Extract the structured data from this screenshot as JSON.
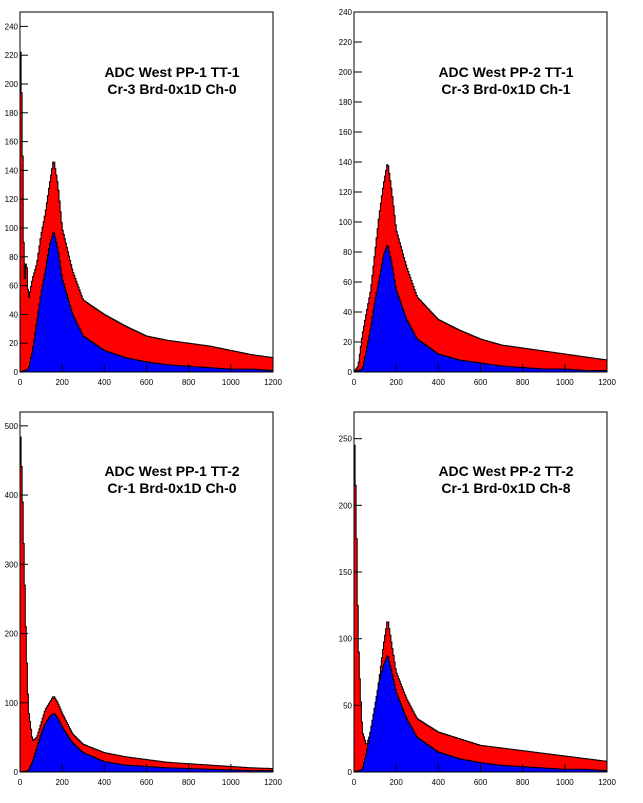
{
  "chart_data": [
    {
      "type": "histogram",
      "title": [
        "ADC West PP-1 TT-1",
        "Cr-3 Brd-0x1D Ch-0"
      ],
      "xlim": [
        0,
        1200
      ],
      "ylim": [
        0,
        250
      ],
      "xticks": [
        0,
        200,
        400,
        600,
        800,
        1000,
        1200
      ],
      "yticks": [
        0,
        20,
        40,
        60,
        80,
        100,
        120,
        140,
        160,
        180,
        200,
        220,
        240
      ],
      "series": [
        {
          "color": "#ff0000",
          "x": [
            0,
            10,
            20,
            30,
            40,
            60,
            80,
            100,
            120,
            140,
            160,
            180,
            200,
            250,
            300,
            400,
            500,
            600,
            700,
            800,
            900,
            1000,
            1100,
            1200
          ],
          "y": [
            236,
            180,
            60,
            80,
            50,
            65,
            75,
            95,
            110,
            130,
            148,
            130,
            100,
            70,
            50,
            40,
            32,
            25,
            22,
            20,
            18,
            15,
            12,
            10
          ]
        },
        {
          "color": "#0000ff",
          "x": [
            0,
            40,
            60,
            80,
            100,
            120,
            140,
            160,
            180,
            200,
            250,
            300,
            400,
            500,
            600,
            700,
            800,
            900,
            1000,
            1100,
            1200
          ],
          "y": [
            0,
            2,
            15,
            35,
            55,
            70,
            88,
            98,
            85,
            65,
            40,
            25,
            15,
            10,
            7,
            5,
            4,
            3,
            2,
            2,
            1
          ]
        }
      ]
    },
    {
      "type": "histogram",
      "title": [
        "ADC West PP-2 TT-1",
        "Cr-3 Brd-0x1D Ch-1"
      ],
      "xlim": [
        0,
        1200
      ],
      "ylim": [
        0,
        240
      ],
      "xticks": [
        0,
        200,
        400,
        600,
        800,
        1000,
        1200
      ],
      "yticks": [
        0,
        20,
        40,
        60,
        80,
        100,
        120,
        140,
        160,
        180,
        200,
        220,
        240
      ],
      "series": [
        {
          "color": "#ff0000",
          "x": [
            0,
            20,
            40,
            60,
            80,
            100,
            120,
            140,
            160,
            180,
            200,
            250,
            300,
            400,
            500,
            600,
            700,
            800,
            900,
            1000,
            1100,
            1200
          ],
          "y": [
            0,
            4,
            25,
            40,
            55,
            80,
            105,
            125,
            140,
            120,
            95,
            70,
            50,
            35,
            28,
            22,
            18,
            16,
            14,
            12,
            10,
            8
          ]
        },
        {
          "color": "#0000ff",
          "x": [
            0,
            40,
            60,
            80,
            100,
            120,
            140,
            160,
            180,
            200,
            250,
            300,
            400,
            500,
            600,
            700,
            800,
            900,
            1000,
            1100,
            1200
          ],
          "y": [
            0,
            2,
            15,
            30,
            48,
            62,
            78,
            85,
            72,
            55,
            35,
            22,
            12,
            8,
            6,
            4,
            3,
            2,
            2,
            1,
            1
          ]
        }
      ]
    },
    {
      "type": "histogram",
      "title": [
        "ADC West PP-1 TT-2",
        "Cr-1 Brd-0x1D Ch-0"
      ],
      "xlim": [
        0,
        1200
      ],
      "ylim": [
        0,
        520
      ],
      "xticks": [
        0,
        200,
        400,
        600,
        800,
        1000,
        1200
      ],
      "yticks": [
        0,
        100,
        200,
        300,
        400,
        500
      ],
      "series": [
        {
          "color": "#ff0000",
          "x": [
            0,
            10,
            20,
            30,
            40,
            60,
            80,
            100,
            120,
            140,
            160,
            180,
            200,
            250,
            300,
            400,
            500,
            600,
            700,
            800,
            900,
            1000,
            1100,
            1200
          ],
          "y": [
            505,
            420,
            300,
            180,
            90,
            45,
            50,
            70,
            90,
            100,
            110,
            100,
            85,
            55,
            40,
            28,
            22,
            18,
            14,
            12,
            10,
            8,
            6,
            5
          ]
        },
        {
          "color": "#0000ff",
          "x": [
            0,
            40,
            60,
            80,
            100,
            120,
            140,
            160,
            180,
            200,
            250,
            300,
            400,
            500,
            600,
            700,
            800,
            900,
            1000,
            1100,
            1200
          ],
          "y": [
            0,
            2,
            15,
            35,
            55,
            70,
            80,
            85,
            78,
            65,
            42,
            28,
            15,
            10,
            8,
            6,
            5,
            4,
            3,
            2,
            2
          ]
        }
      ]
    },
    {
      "type": "histogram",
      "title": [
        "ADC West PP-2 TT-2",
        "Cr-1 Brd-0x1D Ch-8"
      ],
      "xlim": [
        0,
        1200
      ],
      "ylim": [
        0,
        270
      ],
      "xticks": [
        0,
        200,
        400,
        600,
        800,
        1000,
        1200
      ],
      "yticks": [
        0,
        50,
        100,
        150,
        200,
        250
      ],
      "series": [
        {
          "color": "#ff0000",
          "x": [
            0,
            10,
            20,
            30,
            40,
            60,
            80,
            100,
            120,
            140,
            160,
            180,
            200,
            250,
            300,
            400,
            500,
            600,
            700,
            800,
            900,
            1000,
            1100,
            1200
          ],
          "y": [
            260,
            200,
            100,
            60,
            30,
            20,
            30,
            45,
            70,
            95,
            115,
            95,
            75,
            55,
            40,
            30,
            25,
            20,
            18,
            16,
            14,
            12,
            10,
            8
          ]
        },
        {
          "color": "#0000ff",
          "x": [
            0,
            40,
            60,
            80,
            100,
            120,
            140,
            160,
            180,
            200,
            250,
            300,
            400,
            500,
            600,
            700,
            800,
            900,
            1000,
            1100,
            1200
          ],
          "y": [
            0,
            2,
            15,
            32,
            50,
            68,
            80,
            88,
            75,
            60,
            40,
            26,
            15,
            10,
            7,
            5,
            4,
            3,
            2,
            2,
            1
          ]
        }
      ]
    }
  ]
}
